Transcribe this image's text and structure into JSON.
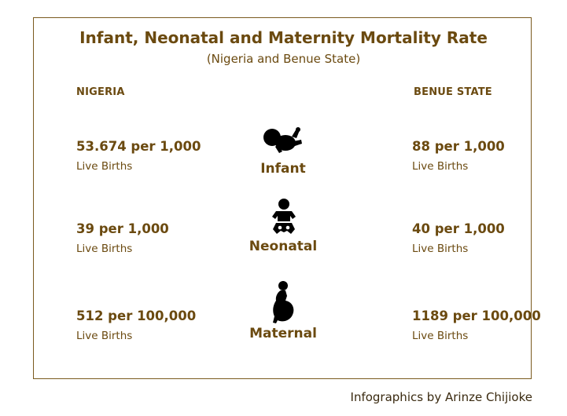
{
  "title": "Infant, Neonatal and Maternity Mortality Rate",
  "subtitle": "(Nigeria and Benue State)",
  "columns": {
    "left": "NIGERIA",
    "right": "BENUE STATE"
  },
  "rows": [
    {
      "category": "Infant",
      "icon": "infant-icon",
      "nigeria_rate": "53.674 per 1,000",
      "nigeria_unit": "Live Births",
      "benue_rate": "88 per 1,000",
      "benue_unit": "Live Births"
    },
    {
      "category": "Neonatal",
      "icon": "baby-icon",
      "nigeria_rate": "39 per 1,000",
      "nigeria_unit": "Live Births",
      "benue_rate": "40 per 1,000",
      "benue_unit": "Live Births"
    },
    {
      "category": "Maternal",
      "icon": "pregnant-woman-icon",
      "nigeria_rate": "512 per 100,000",
      "nigeria_unit": "Live Births",
      "benue_rate": "1189 per 100,000",
      "benue_unit": "Live Births"
    }
  ],
  "credit": "Infographics by Arinze Chijioke",
  "colors": {
    "text": "#6b4a10",
    "icon": "#000000",
    "border": "#7a5a1e"
  }
}
